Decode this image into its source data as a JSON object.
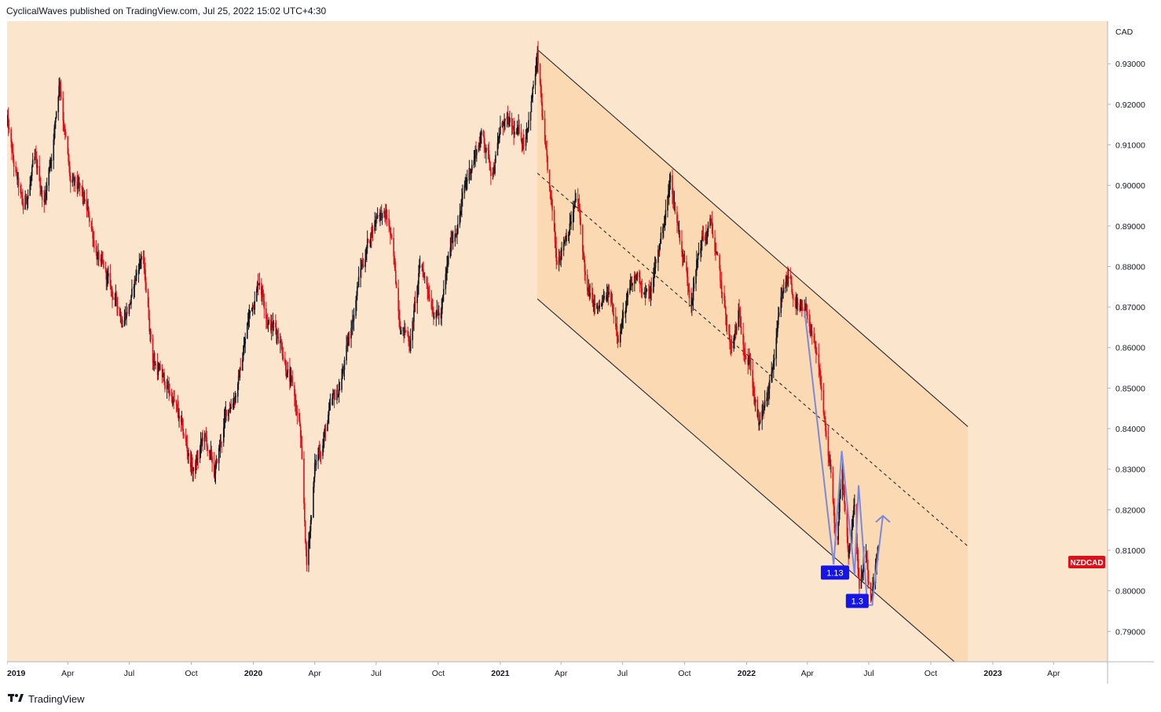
{
  "header": {
    "attribution": "CyclicalWaves published on TradingView.com, Jul 25, 2022 15:02 UTC+4:30"
  },
  "footer": {
    "brand": "TradingView",
    "logo_icon": "tradingview-logo-icon"
  },
  "colors": {
    "background": "#fce5cd",
    "channel_fill": "#fbd9b3",
    "up_candle": "#131722",
    "down_candle": "#e0101a",
    "projection": "#7b8ad8",
    "label_bg": "#1515e6",
    "ticker_bg": "#e0101a"
  },
  "chart_data": {
    "type": "candlestick",
    "symbol": "NZDCAD",
    "currency_label": "CAD",
    "y_ticks": [
      "0.93000",
      "0.92000",
      "0.91000",
      "0.90000",
      "0.89000",
      "0.88000",
      "0.87000",
      "0.86000",
      "0.85000",
      "0.84000",
      "0.83000",
      "0.82000",
      "0.81000",
      "0.80000",
      "0.79000"
    ],
    "ylim": [
      0.7825,
      0.9405
    ],
    "x_ticks": [
      {
        "label": "2019",
        "date": "2019-01-01",
        "bold": true
      },
      {
        "label": "Apr",
        "date": "2019-04-01"
      },
      {
        "label": "Jul",
        "date": "2019-07-01"
      },
      {
        "label": "Oct",
        "date": "2019-10-01"
      },
      {
        "label": "2020",
        "date": "2020-01-01",
        "bold": true
      },
      {
        "label": "Apr",
        "date": "2020-04-01"
      },
      {
        "label": "Jul",
        "date": "2020-07-01"
      },
      {
        "label": "Oct",
        "date": "2020-10-01"
      },
      {
        "label": "2021",
        "date": "2021-01-01",
        "bold": true
      },
      {
        "label": "Apr",
        "date": "2021-04-01"
      },
      {
        "label": "Jul",
        "date": "2021-07-01"
      },
      {
        "label": "Oct",
        "date": "2021-10-01"
      },
      {
        "label": "2022",
        "date": "2022-01-01",
        "bold": true
      },
      {
        "label": "Apr",
        "date": "2022-04-01"
      },
      {
        "label": "Jul",
        "date": "2022-07-01"
      },
      {
        "label": "Oct",
        "date": "2022-10-01"
      },
      {
        "label": "2023",
        "date": "2023-01-01",
        "bold": true
      },
      {
        "label": "Apr",
        "date": "2023-04-01"
      }
    ],
    "x_range": [
      "2019-01-01",
      "2023-06-20"
    ],
    "price_path": [
      [
        "2019-01-01",
        0.916
      ],
      [
        "2019-01-10",
        0.905
      ],
      [
        "2019-01-25",
        0.893
      ],
      [
        "2019-02-10",
        0.905
      ],
      [
        "2019-02-25",
        0.896
      ],
      [
        "2019-03-10",
        0.911
      ],
      [
        "2019-03-20",
        0.927
      ],
      [
        "2019-04-05",
        0.9
      ],
      [
        "2019-04-20",
        0.897
      ],
      [
        "2019-05-05",
        0.89
      ],
      [
        "2019-05-20",
        0.88
      ],
      [
        "2019-06-05",
        0.873
      ],
      [
        "2019-06-20",
        0.868
      ],
      [
        "2019-07-05",
        0.873
      ],
      [
        "2019-07-20",
        0.884
      ],
      [
        "2019-08-05",
        0.858
      ],
      [
        "2019-08-20",
        0.852
      ],
      [
        "2019-09-05",
        0.847
      ],
      [
        "2019-09-20",
        0.837
      ],
      [
        "2019-10-05",
        0.829
      ],
      [
        "2019-10-20",
        0.838
      ],
      [
        "2019-11-05",
        0.828
      ],
      [
        "2019-11-20",
        0.842
      ],
      [
        "2019-12-10",
        0.852
      ],
      [
        "2019-12-25",
        0.867
      ],
      [
        "2020-01-10",
        0.878
      ],
      [
        "2020-01-25",
        0.867
      ],
      [
        "2020-02-10",
        0.863
      ],
      [
        "2020-02-25",
        0.852
      ],
      [
        "2020-03-10",
        0.84
      ],
      [
        "2020-03-20",
        0.805
      ],
      [
        "2020-04-01",
        0.83
      ],
      [
        "2020-04-20",
        0.842
      ],
      [
        "2020-05-05",
        0.848
      ],
      [
        "2020-05-20",
        0.86
      ],
      [
        "2020-06-05",
        0.877
      ],
      [
        "2020-06-20",
        0.887
      ],
      [
        "2020-07-05",
        0.895
      ],
      [
        "2020-07-20",
        0.89
      ],
      [
        "2020-08-05",
        0.868
      ],
      [
        "2020-08-20",
        0.862
      ],
      [
        "2020-09-05",
        0.88
      ],
      [
        "2020-09-20",
        0.873
      ],
      [
        "2020-10-05",
        0.868
      ],
      [
        "2020-10-20",
        0.885
      ],
      [
        "2020-11-05",
        0.896
      ],
      [
        "2020-11-20",
        0.906
      ],
      [
        "2020-12-05",
        0.913
      ],
      [
        "2020-12-20",
        0.904
      ],
      [
        "2021-01-05",
        0.916
      ],
      [
        "2021-01-20",
        0.912
      ],
      [
        "2021-02-05",
        0.911
      ],
      [
        "2021-02-25",
        0.931
      ],
      [
        "2021-03-10",
        0.905
      ],
      [
        "2021-03-25",
        0.882
      ],
      [
        "2021-04-10",
        0.89
      ],
      [
        "2021-04-25",
        0.897
      ],
      [
        "2021-05-10",
        0.873
      ],
      [
        "2021-05-25",
        0.868
      ],
      [
        "2021-06-10",
        0.872
      ],
      [
        "2021-06-25",
        0.865
      ],
      [
        "2021-07-10",
        0.872
      ],
      [
        "2021-07-25",
        0.878
      ],
      [
        "2021-08-10",
        0.872
      ],
      [
        "2021-08-25",
        0.885
      ],
      [
        "2021-09-10",
        0.901
      ],
      [
        "2021-09-25",
        0.887
      ],
      [
        "2021-10-10",
        0.873
      ],
      [
        "2021-10-25",
        0.886
      ],
      [
        "2021-11-10",
        0.89
      ],
      [
        "2021-11-25",
        0.873
      ],
      [
        "2021-12-10",
        0.858
      ],
      [
        "2021-12-20",
        0.867
      ],
      [
        "2022-01-05",
        0.858
      ],
      [
        "2022-01-20",
        0.84
      ],
      [
        "2022-02-05",
        0.85
      ],
      [
        "2022-02-20",
        0.868
      ],
      [
        "2022-03-05",
        0.878
      ],
      [
        "2022-03-20",
        0.868
      ],
      [
        "2022-04-05",
        0.866
      ],
      [
        "2022-04-20",
        0.85
      ],
      [
        "2022-05-05",
        0.83
      ],
      [
        "2022-05-15",
        0.808
      ],
      [
        "2022-05-22",
        0.83
      ],
      [
        "2022-06-01",
        0.81
      ],
      [
        "2022-06-10",
        0.822
      ],
      [
        "2022-06-17",
        0.801
      ],
      [
        "2022-06-27",
        0.807
      ],
      [
        "2022-07-05",
        0.795
      ],
      [
        "2022-07-15",
        0.807
      ]
    ],
    "channel": {
      "upper": [
        [
          "2021-02-25",
          0.9335
        ],
        [
          "2022-11-25",
          0.8405
        ]
      ],
      "lower": [
        [
          "2021-02-25",
          0.872
        ],
        [
          "2022-11-05",
          0.7825
        ]
      ],
      "mid": [
        [
          "2021-02-25",
          0.903
        ],
        [
          "2022-11-25",
          0.811
        ]
      ],
      "shade": {
        "top_left": 0.9335,
        "top_right": 0.8405,
        "bottom_left": 0.872,
        "bottom_right": 0.7825,
        "x_end": "2022-11-25",
        "bottom_fill": 0.7825
      }
    },
    "projection": {
      "path": [
        [
          "2022-03-28",
          0.869
        ],
        [
          "2022-05-10",
          0.8065
        ],
        [
          "2022-05-22",
          0.8345
        ],
        [
          "2022-06-10",
          0.804
        ],
        [
          "2022-06-16",
          0.826
        ],
        [
          "2022-06-29",
          0.7965
        ],
        [
          "2022-07-06",
          0.7965
        ],
        [
          "2022-07-22",
          0.8185
        ]
      ],
      "labels": [
        {
          "text": "1.13",
          "date": "2022-05-12",
          "price": 0.8045
        },
        {
          "text": "1.3",
          "date": "2022-06-14",
          "price": 0.7975
        }
      ]
    },
    "last_price_label": {
      "text": "NZDCAD",
      "price": 0.8071
    }
  }
}
